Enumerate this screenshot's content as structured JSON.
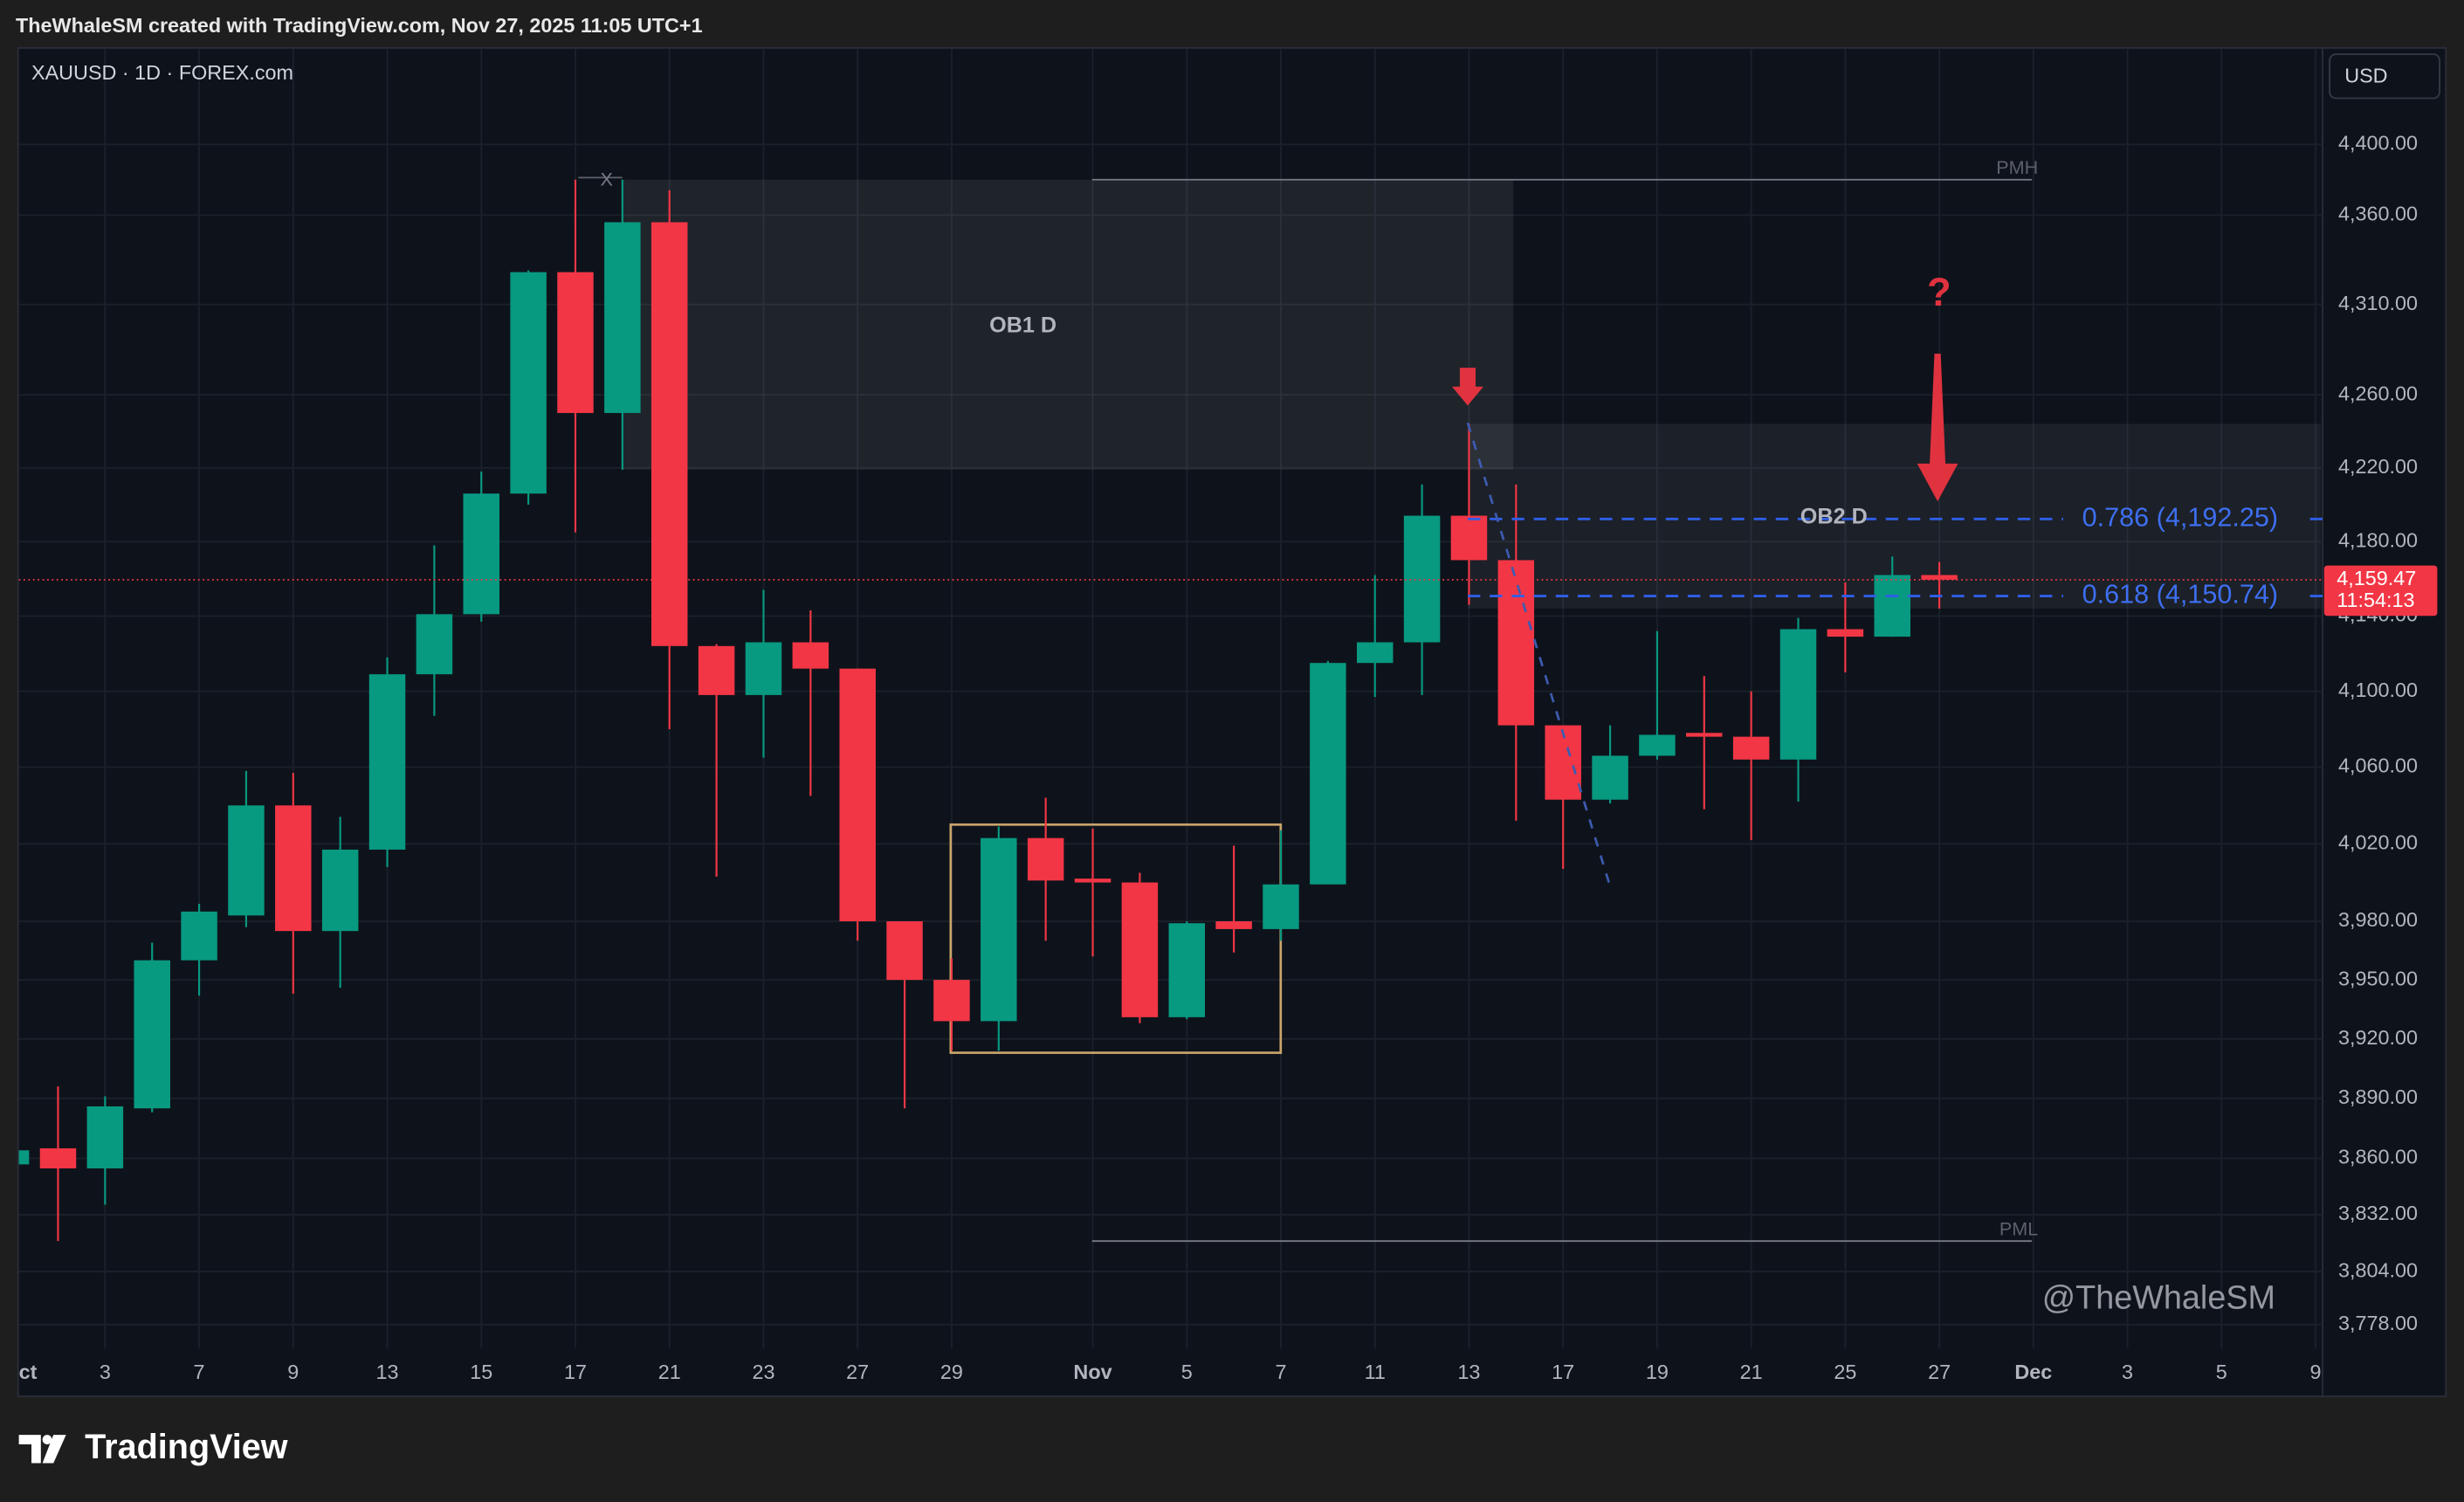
{
  "header": "TheWhaleSM created with TradingView.com, Nov 27, 2025 11:05 UTC+1",
  "footer": {
    "logo": "TradingView"
  },
  "chart_data": {
    "type": "candlestick",
    "title": "XAUUSD · 1D · FOREX.com",
    "currency": "USD",
    "categories": [
      "ct",
      null,
      "3",
      null,
      "7",
      null,
      "9",
      null,
      "13",
      null,
      "15",
      null,
      "17",
      null,
      "21",
      null,
      "23",
      null,
      "27",
      null,
      "29",
      null,
      null,
      "Nov",
      null,
      "5",
      null,
      "7",
      null,
      "11",
      null,
      "13",
      null,
      "17",
      null,
      "19",
      null,
      "21",
      null,
      "25",
      null,
      "27",
      null,
      "Dec",
      null,
      "3",
      null,
      "5",
      null,
      "9"
    ],
    "open": [
      3857,
      3865,
      3855,
      3885,
      3960,
      3983,
      4040,
      3975,
      4017,
      4109,
      4141,
      4206,
      4328,
      4250,
      4356,
      4124,
      4098,
      4126,
      4112,
      3980,
      3950,
      3929,
      4023,
      4002,
      4000,
      3931,
      3980,
      3976,
      3999,
      4115,
      4126,
      4194,
      4170,
      4082,
      4043,
      4066,
      4078,
      4076,
      4064,
      4133,
      4129,
      4162,
      null,
      null,
      null,
      null,
      null,
      null,
      null,
      null
    ],
    "high": [
      3866,
      3896,
      3891,
      3969,
      3989,
      4058,
      4057,
      4034,
      4118,
      4178,
      4218,
      4329,
      4380,
      4380,
      4374,
      4125,
      4154,
      4143,
      4112,
      3980,
      3961,
      4029,
      4044,
      4028,
      4005,
      3980,
      4019,
      4027,
      4116,
      4162,
      4211,
      4244,
      4211,
      4082,
      4082,
      4132,
      4108,
      4100,
      4139,
      4158,
      4172,
      4169,
      null,
      null,
      null,
      null,
      null,
      null,
      null,
      null
    ],
    "low": [
      3855,
      3819,
      3837,
      3883,
      3942,
      3977,
      3943,
      3946,
      4008,
      4087,
      4137,
      4200,
      4185,
      4219,
      4080,
      4003,
      4065,
      4045,
      3970,
      3885,
      3914,
      3914,
      3970,
      3962,
      3928,
      3930,
      3964,
      3970,
      3999,
      4097,
      4098,
      4146,
      4032,
      4007,
      4041,
      4064,
      4038,
      4022,
      4042,
      4110,
      4129,
      4144,
      null,
      null,
      null,
      null,
      null,
      null,
      null,
      null
    ],
    "close": [
      3864,
      3855,
      3886,
      3960,
      3985,
      4040,
      3975,
      4017,
      4109,
      4141,
      4206,
      4328,
      4250,
      4356,
      4124,
      4098,
      4126,
      4112,
      3980,
      3950,
      3929,
      4023,
      4001,
      4000,
      3931,
      3979,
      3976,
      3999,
      4115,
      4126,
      4194,
      4170,
      4082,
      4043,
      4066,
      4077,
      4076,
      4064,
      4133,
      4129,
      4162,
      4159.47,
      null,
      null,
      null,
      null,
      null,
      null,
      null,
      null
    ],
    "up_color": "#089981",
    "down_color": "#f23645",
    "log_scale": true,
    "grid": true,
    "ylim": [
      3766.4,
      4454.7
    ],
    "yticks": [
      {
        "value": 4400,
        "label": "4,400.00"
      },
      {
        "value": 4360,
        "label": "4,360.00"
      },
      {
        "value": 4310,
        "label": "4,310.00"
      },
      {
        "value": 4260,
        "label": "4,260.00"
      },
      {
        "value": 4220,
        "label": "4,220.00"
      },
      {
        "value": 4180,
        "label": "4,180.00"
      },
      {
        "value": 4140,
        "label": "4,140.00"
      },
      {
        "value": 4100,
        "label": "4,100.00"
      },
      {
        "value": 4060,
        "label": "4,060.00"
      },
      {
        "value": 4020,
        "label": "4,020.00"
      },
      {
        "value": 3980,
        "label": "3,980.00"
      },
      {
        "value": 3950,
        "label": "3,950.00"
      },
      {
        "value": 3920,
        "label": "3,920.00"
      },
      {
        "value": 3890,
        "label": "3,890.00"
      },
      {
        "value": 3860,
        "label": "3,860.00"
      },
      {
        "value": 3832,
        "label": "3,832.00"
      },
      {
        "value": 3804,
        "label": "3,804.00"
      },
      {
        "value": 3778,
        "label": "3,778.00"
      }
    ],
    "last_price": {
      "value": 4159.47,
      "label": "4,159.47",
      "countdown": "11:54:13"
    },
    "zones": [
      {
        "label": "OB1 D",
        "top": 4380,
        "bottom": 4219
      },
      {
        "label": "OB2 D",
        "top": 4244,
        "bottom": 4144
      }
    ],
    "fib_levels": [
      {
        "label": "0.786 (4,192.25)",
        "value": 4192.25
      },
      {
        "label": "0.618 (4,150.74)",
        "value": 4150.74
      }
    ],
    "levels": [
      {
        "label": "PMH",
        "value": 4380
      },
      {
        "label": "PML",
        "value": 3819
      }
    ],
    "range_box": {
      "top": 4030,
      "bottom": 3913
    },
    "annotations": {
      "marker": "X",
      "question": "?",
      "watermark": "@TheWhaleSM"
    }
  }
}
